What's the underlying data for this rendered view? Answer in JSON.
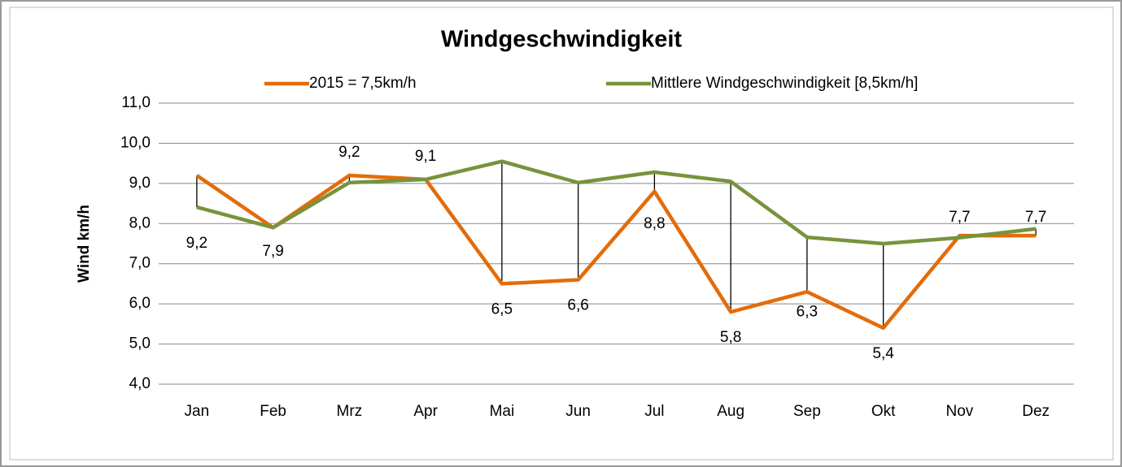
{
  "chart_data": {
    "type": "line",
    "title": "Windgeschwindigkeit",
    "ylabel": "Wind km/h",
    "categories": [
      "Jan",
      "Feb",
      "Mrz",
      "Apr",
      "Mai",
      "Jun",
      "Jul",
      "Aug",
      "Sep",
      "Okt",
      "Nov",
      "Dez"
    ],
    "series": [
      {
        "name": "2015 = 7,5km/h",
        "color": "#e36c0a",
        "values": [
          9.2,
          7.9,
          9.2,
          9.1,
          6.5,
          6.6,
          8.8,
          5.8,
          6.3,
          5.4,
          7.7,
          7.7
        ],
        "value_labels": [
          "9,2",
          "7,9",
          "9,2",
          "9,1",
          "6,5",
          "6,6",
          "8,8",
          "5,8",
          "6,3",
          "5,4",
          "7,7",
          "7,7"
        ]
      },
      {
        "name": "Mittlere Windgeschwindigkeit [8,5km/h]",
        "color": "#77933c",
        "values": [
          8.41,
          7.9,
          9.02,
          9.1,
          9.55,
          9.02,
          9.28,
          9.05,
          7.66,
          7.5,
          7.65,
          7.87
        ]
      }
    ],
    "ylim": [
      4,
      11
    ],
    "yticks": [
      {
        "value": 4,
        "label": "4,0"
      },
      {
        "value": 5,
        "label": "5,0"
      },
      {
        "value": 6,
        "label": "6,0"
      },
      {
        "value": 7,
        "label": "7,0"
      },
      {
        "value": 8,
        "label": "8,0"
      },
      {
        "value": 9,
        "label": "9,0"
      },
      {
        "value": 10,
        "label": "10,0"
      },
      {
        "value": 11,
        "label": "11,0"
      }
    ],
    "grid": true,
    "high_low_lines": true,
    "legend": "top"
  }
}
